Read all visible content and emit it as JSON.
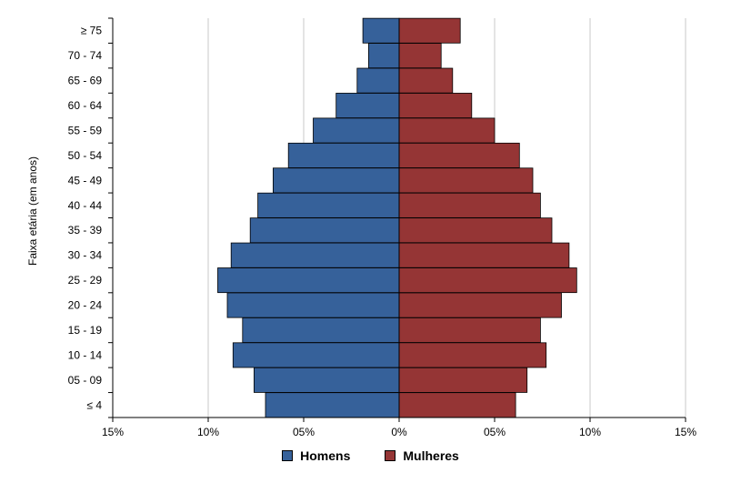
{
  "chart_data": {
    "type": "bar",
    "orientation": "horizontal-population-pyramid",
    "ylabel": "Faixa etária (em anos)",
    "categories": [
      "≤ 4",
      "05 - 09",
      "10 - 14",
      "15 - 19",
      "20 - 24",
      "25 - 29",
      "30 - 34",
      "35 - 39",
      "40 - 44",
      "45 - 49",
      "50 - 54",
      "55 - 59",
      "60 - 64",
      "65 - 69",
      "70 - 74",
      "≥ 75"
    ],
    "series": [
      {
        "name": "Homens",
        "color": "#36619A",
        "side": "left",
        "values": [
          7.0,
          7.6,
          8.7,
          8.2,
          9.0,
          9.5,
          8.8,
          7.8,
          7.4,
          6.6,
          5.8,
          4.5,
          3.3,
          2.2,
          1.6,
          1.9
        ]
      },
      {
        "name": "Mulheres",
        "color": "#953535",
        "side": "right",
        "values": [
          6.1,
          6.7,
          7.7,
          7.4,
          8.5,
          9.3,
          8.9,
          8.0,
          7.4,
          7.0,
          6.3,
          5.0,
          3.8,
          2.8,
          2.2,
          3.2
        ]
      }
    ],
    "xlim": [
      -15,
      15
    ],
    "x_ticks": [
      -15,
      -10,
      -5,
      0,
      5,
      10,
      15
    ],
    "x_tick_labels": [
      "15%",
      "10%",
      "05%",
      "0%",
      "05%",
      "10%",
      "15%"
    ],
    "grid": "vertical",
    "legend_position": "bottom-center"
  }
}
